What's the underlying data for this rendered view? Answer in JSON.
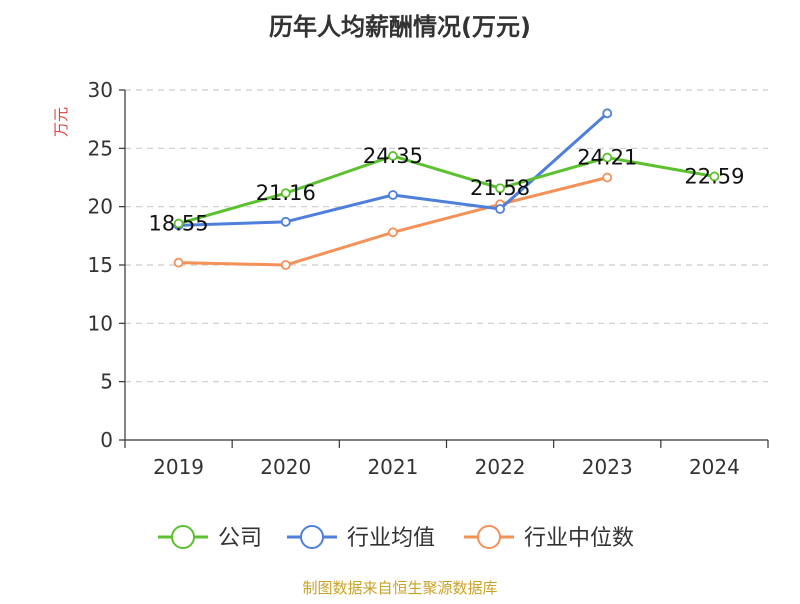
{
  "chart_data": {
    "type": "line",
    "title": "历年人均薪酬情况(万元)",
    "ylabel": "万元",
    "xlabel": "",
    "categories": [
      "2019",
      "2020",
      "2021",
      "2022",
      "2023",
      "2024"
    ],
    "ylim": [
      0,
      30
    ],
    "yticks": [
      0,
      5,
      10,
      15,
      20,
      25,
      30
    ],
    "grid": true,
    "legend_position": "bottom",
    "series": [
      {
        "name": "公司",
        "color": "#5cc12e",
        "values": [
          18.55,
          21.16,
          24.35,
          21.58,
          24.21,
          22.59
        ],
        "labels": [
          "18.55",
          "21.16",
          "24.35",
          "21.58",
          "24.21",
          "22.59"
        ]
      },
      {
        "name": "行业均值",
        "color": "#4e7fdb",
        "values": [
          18.4,
          18.7,
          21.0,
          19.8,
          28.0,
          null
        ]
      },
      {
        "name": "行业中位数",
        "color": "#f39158",
        "values": [
          15.2,
          15.0,
          17.8,
          20.2,
          22.5,
          null
        ]
      }
    ]
  },
  "footer": {
    "source": "制图数据来自恒生聚源数据库",
    "source_color": "#c9a227"
  },
  "colors": {
    "axis": "#333333",
    "grid": "#cccccc",
    "ylabel": "#e0403a"
  }
}
